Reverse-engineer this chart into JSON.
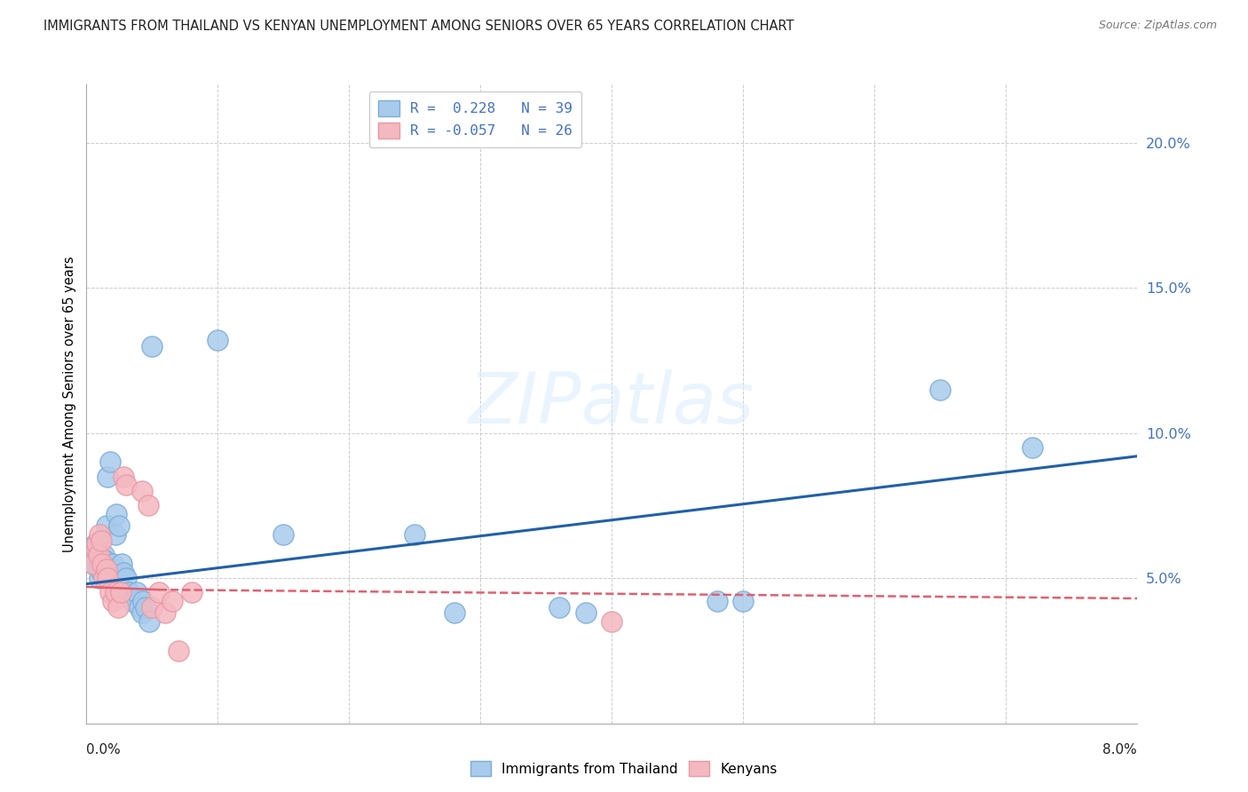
{
  "title": "IMMIGRANTS FROM THAILAND VS KENYAN UNEMPLOYMENT AMONG SENIORS OVER 65 YEARS CORRELATION CHART",
  "source": "Source: ZipAtlas.com",
  "ylabel": "Unemployment Among Seniors over 65 years",
  "xlim": [
    0.0,
    8.0
  ],
  "ylim": [
    0.0,
    22.0
  ],
  "yticks": [
    5.0,
    10.0,
    15.0,
    20.0
  ],
  "ytick_labels": [
    "5.0%",
    "10.0%",
    "15.0%",
    "20.0%"
  ],
  "legend_label_blue": "R =  0.228   N = 39",
  "legend_label_pink": "R = -0.057   N = 26",
  "bottom_legend": [
    "Immigrants from Thailand",
    "Kenyans"
  ],
  "blue_color": "#a8caec",
  "pink_color": "#f4b8c0",
  "blue_edge_color": "#7aadd8",
  "pink_edge_color": "#e898a4",
  "blue_line_color": "#2060a8",
  "pink_line_color": "#e06070",
  "watermark": "ZIPatlas",
  "blue_points": [
    [
      0.05,
      5.5
    ],
    [
      0.06,
      5.8
    ],
    [
      0.07,
      6.2
    ],
    [
      0.08,
      6.0
    ],
    [
      0.09,
      5.3
    ],
    [
      0.1,
      5.0
    ],
    [
      0.11,
      5.5
    ],
    [
      0.12,
      5.2
    ],
    [
      0.13,
      5.8
    ],
    [
      0.14,
      5.6
    ],
    [
      0.15,
      6.8
    ],
    [
      0.16,
      8.5
    ],
    [
      0.18,
      9.0
    ],
    [
      0.2,
      5.5
    ],
    [
      0.22,
      6.5
    ],
    [
      0.23,
      7.2
    ],
    [
      0.25,
      6.8
    ],
    [
      0.27,
      5.5
    ],
    [
      0.28,
      5.2
    ],
    [
      0.3,
      5.0
    ],
    [
      0.32,
      4.5
    ],
    [
      0.35,
      4.2
    ],
    [
      0.38,
      4.5
    ],
    [
      0.4,
      4.0
    ],
    [
      0.42,
      3.8
    ],
    [
      0.43,
      4.2
    ],
    [
      0.45,
      4.0
    ],
    [
      0.48,
      3.5
    ],
    [
      0.5,
      13.0
    ],
    [
      1.0,
      13.2
    ],
    [
      1.5,
      6.5
    ],
    [
      2.5,
      6.5
    ],
    [
      2.8,
      3.8
    ],
    [
      3.6,
      4.0
    ],
    [
      3.8,
      3.8
    ],
    [
      4.8,
      4.2
    ],
    [
      5.0,
      4.2
    ],
    [
      6.5,
      11.5
    ],
    [
      7.2,
      9.5
    ]
  ],
  "pink_points": [
    [
      0.05,
      5.5
    ],
    [
      0.07,
      6.0
    ],
    [
      0.08,
      6.2
    ],
    [
      0.09,
      5.8
    ],
    [
      0.1,
      6.5
    ],
    [
      0.11,
      6.3
    ],
    [
      0.12,
      5.5
    ],
    [
      0.13,
      5.0
    ],
    [
      0.15,
      5.3
    ],
    [
      0.16,
      5.0
    ],
    [
      0.18,
      4.5
    ],
    [
      0.2,
      4.2
    ],
    [
      0.22,
      4.5
    ],
    [
      0.24,
      4.0
    ],
    [
      0.26,
      4.5
    ],
    [
      0.28,
      8.5
    ],
    [
      0.3,
      8.2
    ],
    [
      0.42,
      8.0
    ],
    [
      0.47,
      7.5
    ],
    [
      0.5,
      4.0
    ],
    [
      0.55,
      4.5
    ],
    [
      0.6,
      3.8
    ],
    [
      0.65,
      4.2
    ],
    [
      0.7,
      2.5
    ],
    [
      0.8,
      4.5
    ],
    [
      4.0,
      3.5
    ]
  ],
  "blue_line": {
    "x0": 0.0,
    "y0": 4.8,
    "x1": 8.0,
    "y1": 9.2
  },
  "pink_line_solid": {
    "x0": 0.0,
    "y0": 4.7,
    "x1": 0.55,
    "y1": 4.6
  },
  "pink_line_dash": {
    "x0": 0.55,
    "y0": 4.6,
    "x1": 8.0,
    "y1": 4.3
  }
}
